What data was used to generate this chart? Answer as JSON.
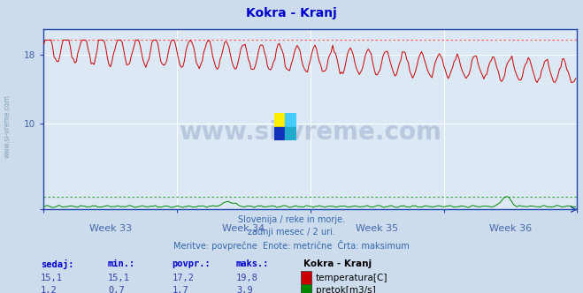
{
  "title": "Kokra - Kranj",
  "title_color": "#0000cc",
  "bg_color": "#ccdcec",
  "plot_bg_color": "#dce8f4",
  "grid_color": "#ffffff",
  "x_labels": [
    "Week 33",
    "Week 34",
    "Week 35",
    "Week 36"
  ],
  "x_label_color": "#4466aa",
  "temp_color": "#cc0000",
  "temp_dotted_color": "#ff6666",
  "flow_color": "#008800",
  "flow_dotted_color": "#44aa44",
  "axis_color": "#2244aa",
  "watermark_text": "www.si-vreme.com",
  "watermark_color": "#1a3a7a",
  "watermark_alpha": 0.18,
  "footer_lines": [
    "Slovenija / reke in morje.",
    "zadnji mesec / 2 uri.",
    "Meritve: povprečne  Enote: metrične  Črta: maksimum"
  ],
  "footer_color": "#3366aa",
  "table_headers": [
    "sedaj:",
    "min.:",
    "povpr.:",
    "maks.:"
  ],
  "table_header_color": "#0000cc",
  "table_values_temp": [
    "15,1",
    "15,1",
    "17,2",
    "19,8"
  ],
  "table_values_flow": [
    "1,2",
    "0,7",
    "1,7",
    "3,9"
  ],
  "table_value_color": "#3344aa",
  "station_label": "Kokra - Kranj",
  "station_label_color": "#000000",
  "legend_temp": "temperatura[C]",
  "legend_flow": "pretok[m3/s]",
  "ymin": 0,
  "ymax": 21.0,
  "temp_max_line": 19.8,
  "flow_max_line_scaled": 1.47,
  "n_points": 360,
  "flow_axis_max": 5.0
}
